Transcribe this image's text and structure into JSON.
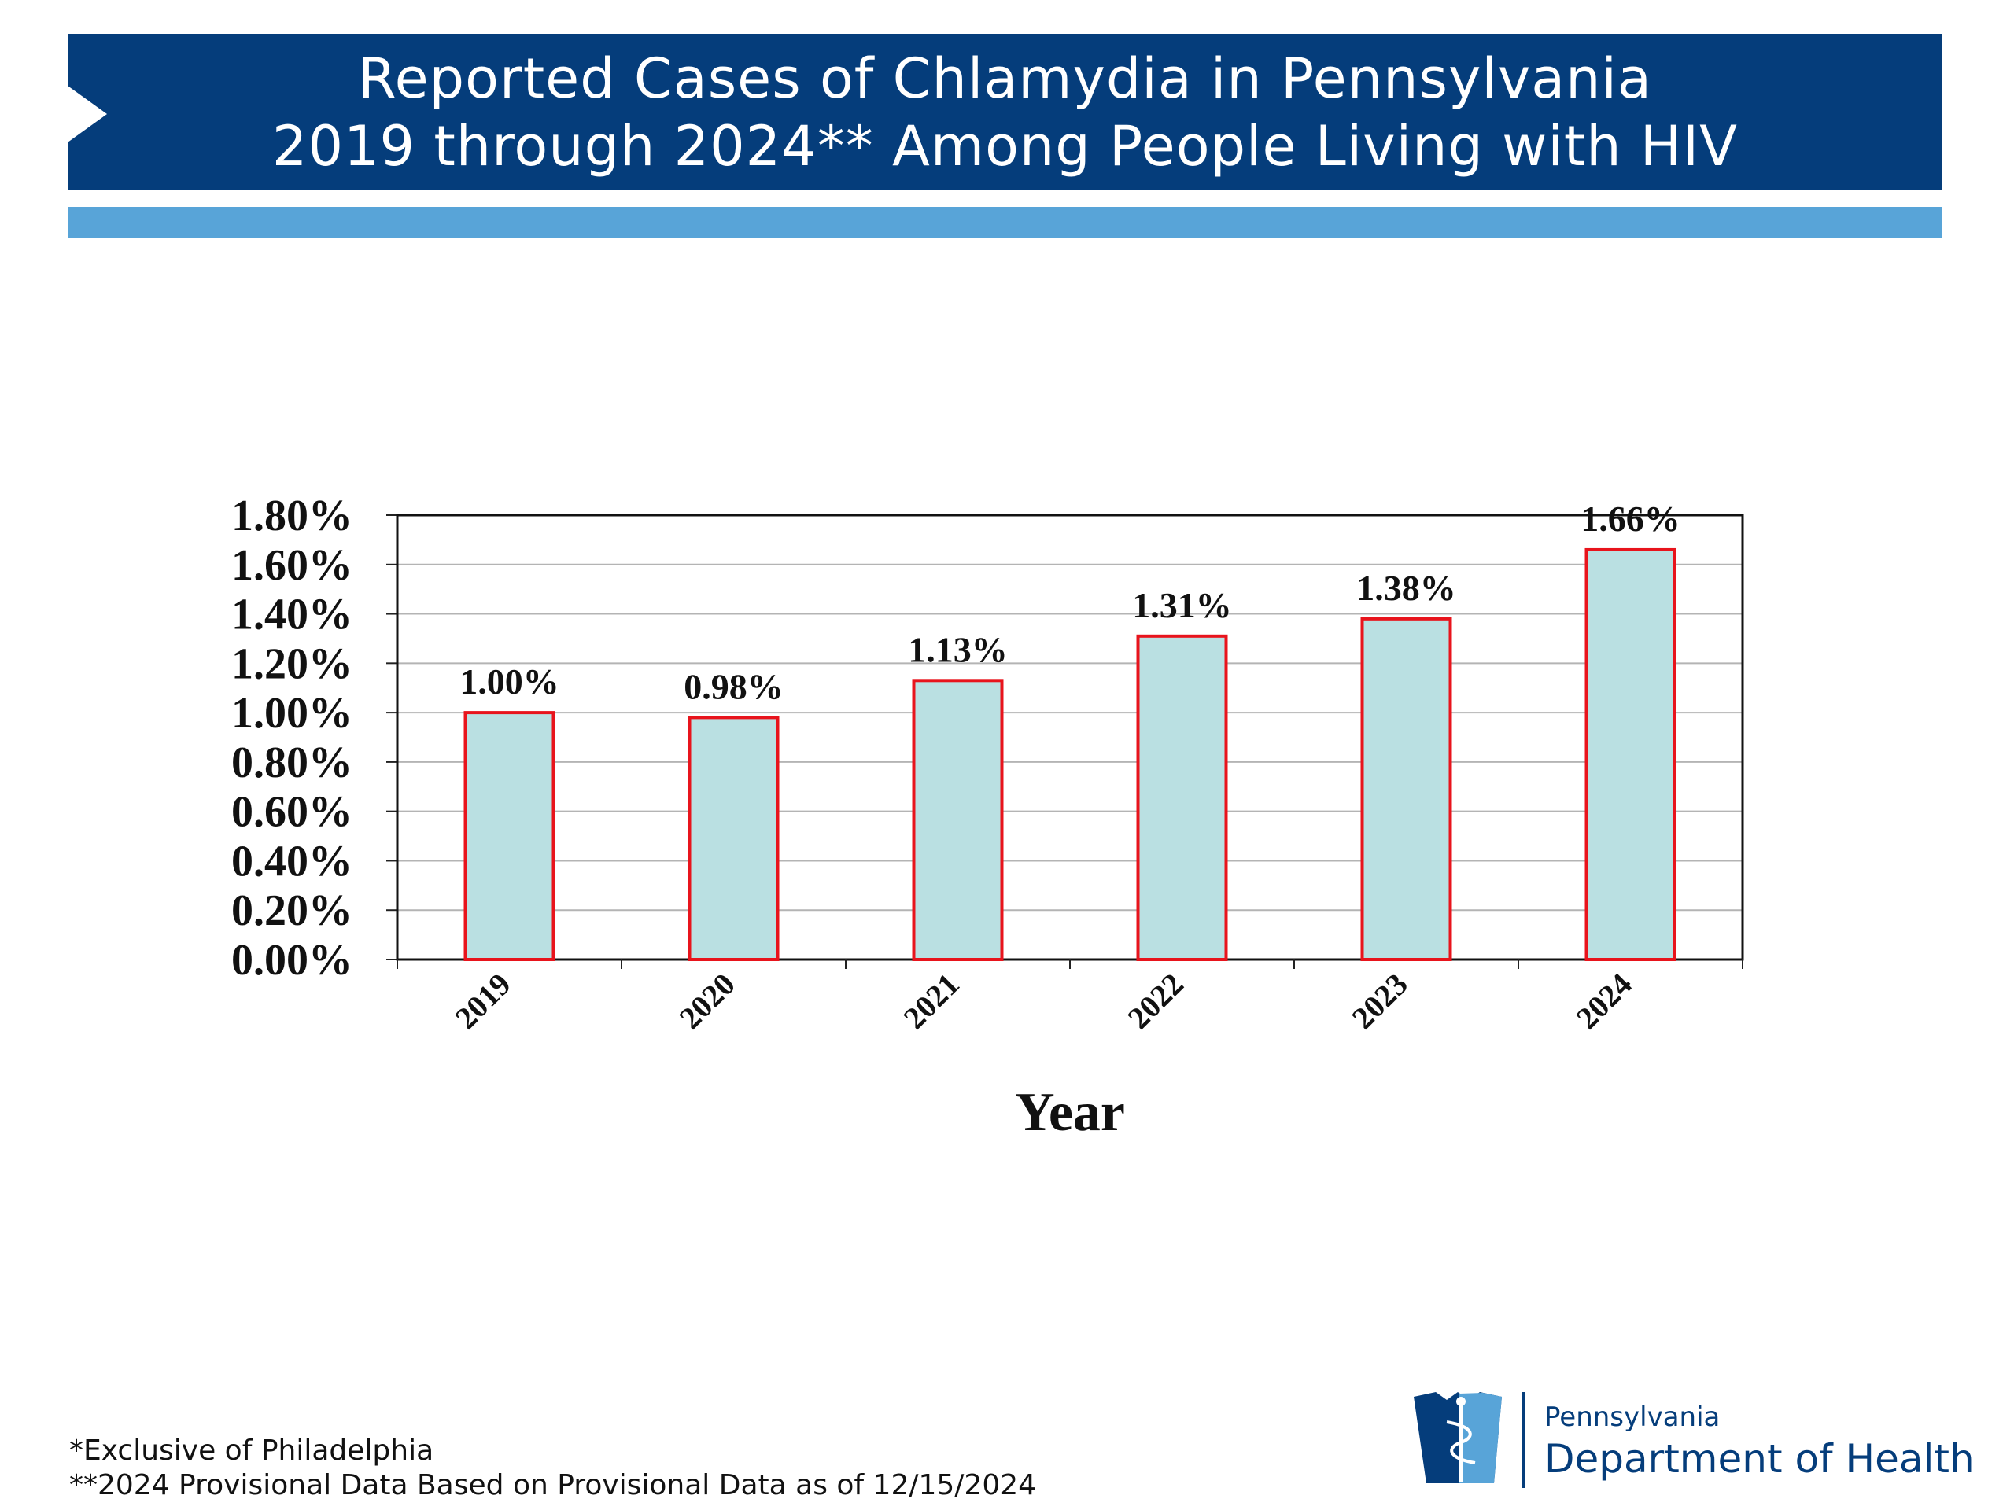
{
  "header": {
    "title_line1": "Reported Cases of Chlamydia in Pennsylvania",
    "title_line2": "2019 through 2024** Among People Living with HIV"
  },
  "chart_data": {
    "type": "bar",
    "categories": [
      "2019",
      "2020",
      "2021",
      "2022",
      "2023",
      "2024"
    ],
    "values": [
      1.0,
      0.98,
      1.13,
      1.31,
      1.38,
      1.66
    ],
    "data_labels": [
      "1.00%",
      "0.98%",
      "1.13%",
      "1.31%",
      "1.38%",
      "1.66%"
    ],
    "xlabel": "Year",
    "ylabel": "",
    "ylim": [
      0,
      1.8
    ],
    "yticks": [
      "0.00%",
      "0.20%",
      "0.40%",
      "0.60%",
      "0.80%",
      "1.00%",
      "1.20%",
      "1.40%",
      "1.60%",
      "1.80%"
    ],
    "grid": true,
    "bar_fill": "#bae0e2",
    "bar_stroke": "#e8141c"
  },
  "footnotes": {
    "note1": "*Exclusive of Philadelphia",
    "note2": "**2024 Provisional Data Based on Provisional Data as of 12/15/2024"
  },
  "logo": {
    "line1": "Pennsylvania",
    "line2": "Department of Health",
    "icon": "keystone-caduceus-icon"
  },
  "colors": {
    "banner": "#053d7b",
    "accent": "#58a4d8"
  }
}
